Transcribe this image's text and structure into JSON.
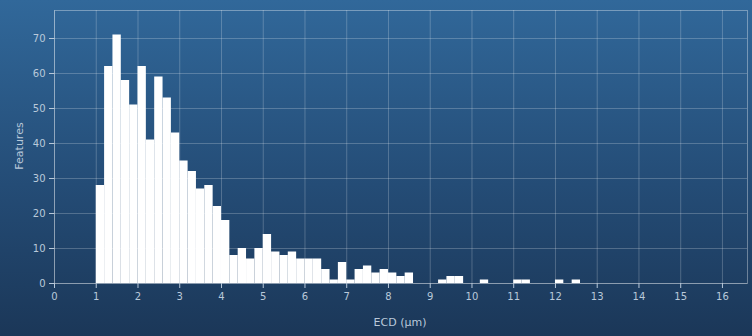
{
  "chart_data": {
    "type": "histogram",
    "x_label": "ECD (µm)",
    "y_label": "Features",
    "bins": [
      1.0,
      1.2,
      1.4,
      1.6,
      1.8,
      2.0,
      2.2,
      2.4,
      2.6,
      2.8,
      3.0,
      3.2,
      3.4,
      3.6,
      3.8,
      4.0,
      4.2,
      4.4,
      4.6,
      4.8,
      5.0,
      5.2,
      5.4,
      5.6,
      5.8,
      6.0,
      6.2,
      6.4,
      6.6,
      6.8,
      7.0,
      7.2,
      7.4,
      7.6,
      7.8,
      8.0,
      8.2,
      8.4,
      8.6,
      8.8,
      9.0,
      9.2,
      9.4,
      9.6,
      9.8,
      10.0,
      10.2,
      10.4,
      10.6,
      10.8,
      11.0,
      11.2,
      11.4,
      11.6,
      11.8,
      12.0,
      12.2,
      12.4,
      12.6
    ],
    "values": [
      28,
      62,
      71,
      58,
      51,
      62,
      41,
      59,
      53,
      43,
      35,
      32,
      27,
      28,
      22,
      18,
      8,
      10,
      7,
      10,
      14,
      9,
      8,
      9,
      7,
      7,
      7,
      4,
      1,
      6,
      1,
      4,
      5,
      3,
      4,
      3,
      2,
      3,
      0,
      0,
      0,
      1,
      2,
      2,
      0,
      0,
      1,
      0,
      0,
      0,
      1,
      1,
      0,
      0,
      0,
      1,
      0,
      1
    ],
    "color": "#ffffff",
    "xlim": [
      0,
      16.6
    ],
    "xticks": [
      0,
      1,
      2,
      3,
      4,
      5,
      6,
      7,
      8,
      9,
      10,
      11,
      12,
      13,
      14,
      15,
      16
    ],
    "ylim": [
      0,
      78
    ],
    "yticks": [
      0,
      10,
      20,
      30,
      40,
      50,
      60,
      70
    ],
    "grid": true
  }
}
